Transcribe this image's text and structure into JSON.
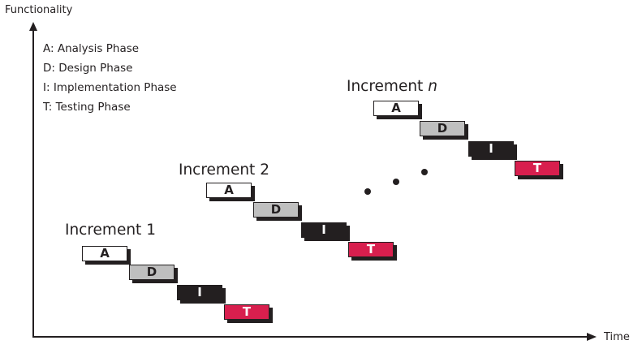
{
  "axes": {
    "y_label": "Functionality",
    "x_label": "Time"
  },
  "legend": [
    "A: Analysis Phase",
    "D: Design Phase",
    "I: Implementation Phase",
    "T: Testing Phase"
  ],
  "increments": [
    {
      "title": "Increment 1",
      "suffix": ""
    },
    {
      "title": "Increment 2",
      "suffix": ""
    },
    {
      "title": "Increment ",
      "suffix": "n"
    }
  ],
  "phase_letters": {
    "a": "A",
    "d": "D",
    "i": "I",
    "t": "T"
  },
  "colors": {
    "analysis": "#ffffff",
    "design": "#bfbfbf",
    "implementation": "#231f20",
    "testing": "#d81f4e",
    "axis": "#231f20"
  }
}
